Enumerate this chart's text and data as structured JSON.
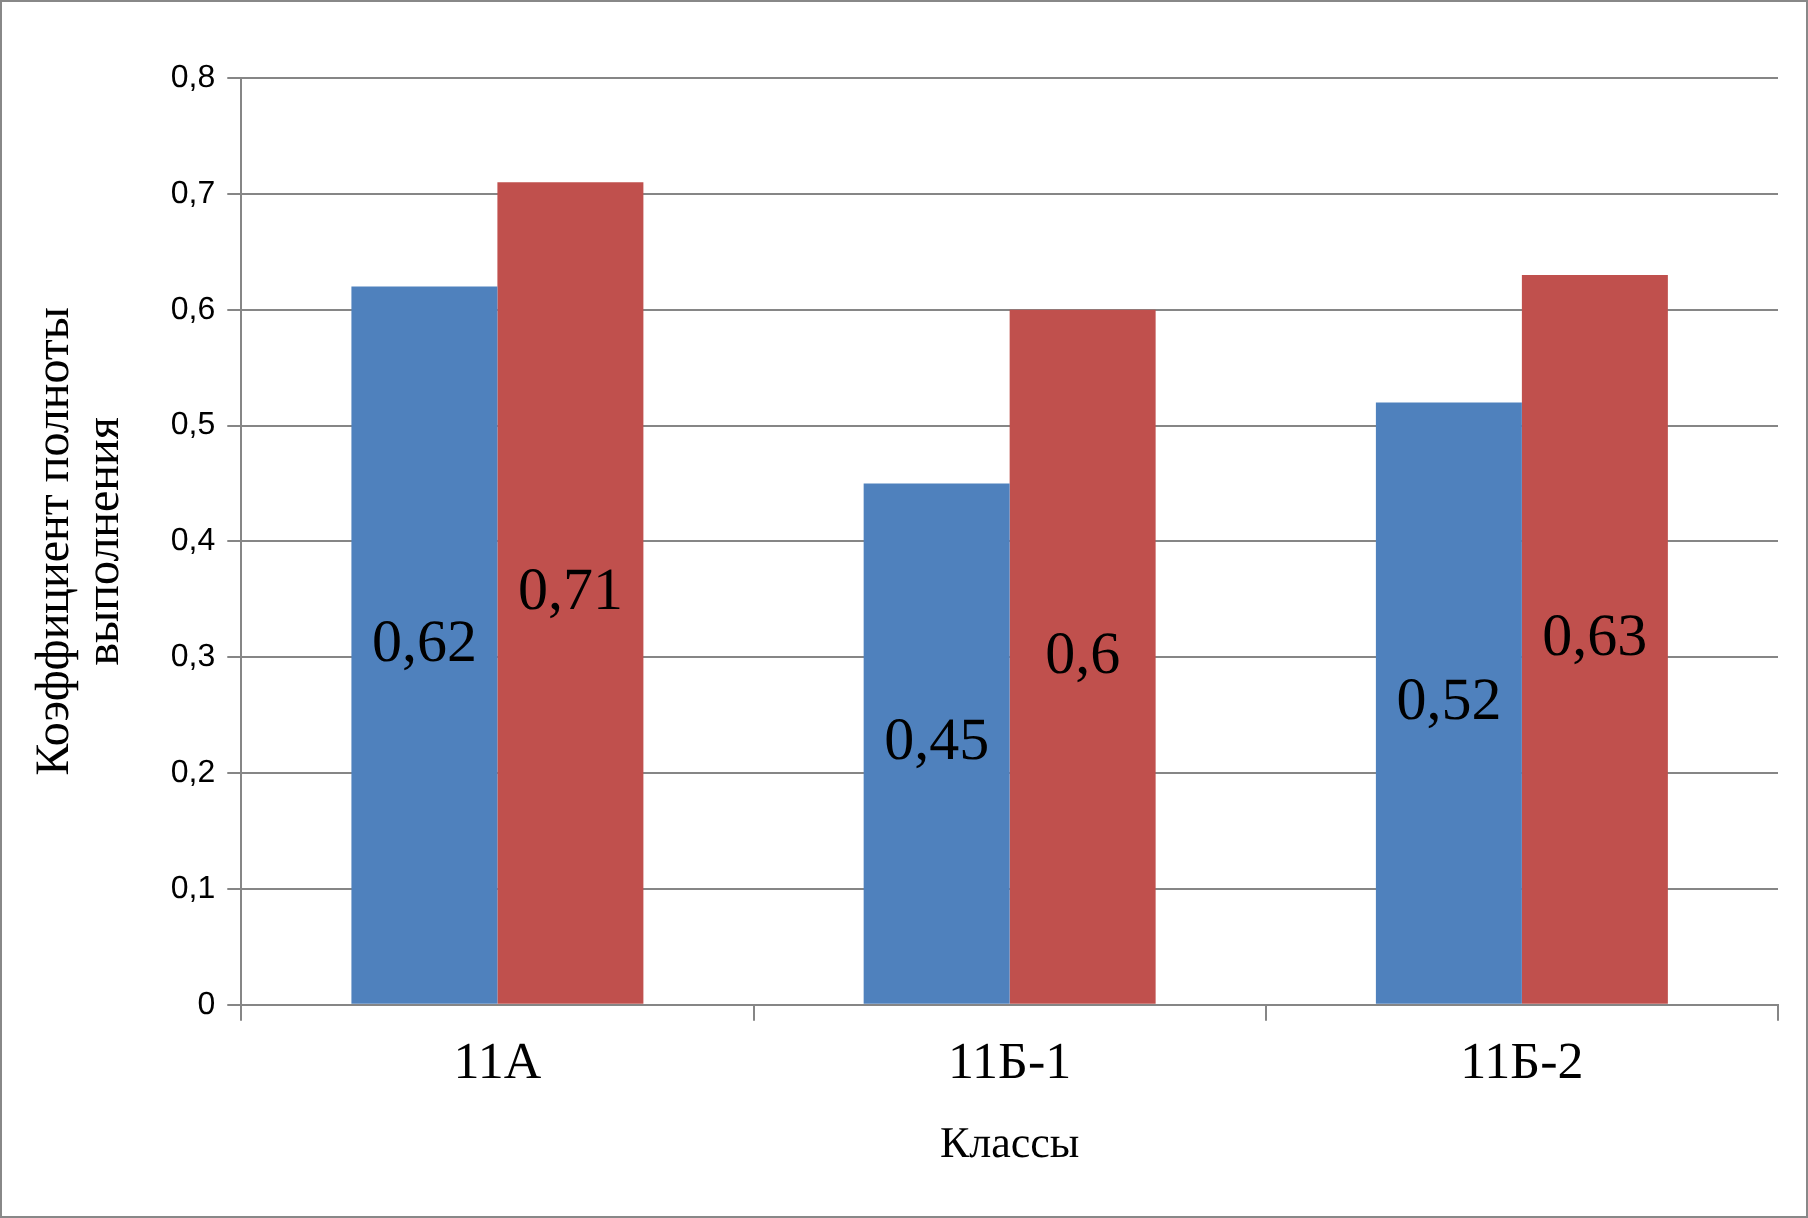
{
  "chart_data": {
    "type": "bar",
    "ylabel": "Коэффициент полноты выполнения",
    "xlabel": "Классы",
    "categories": [
      "11А",
      "11Б-1",
      "11Б-2"
    ],
    "series": [
      {
        "color": "#4f81bd",
        "values": [
          0.62,
          0.45,
          0.52
        ],
        "value_labels": [
          "0,62",
          "0,45",
          "0,52"
        ]
      },
      {
        "color": "#c0504d",
        "values": [
          0.71,
          0.6,
          0.63
        ],
        "value_labels": [
          "0,71",
          "0,6",
          "0,63"
        ]
      }
    ],
    "ylim": [
      0,
      0.8
    ],
    "yticks": [
      {
        "value": 0,
        "label": "0"
      },
      {
        "value": 0.1,
        "label": "0,1"
      },
      {
        "value": 0.2,
        "label": "0,2"
      },
      {
        "value": 0.3,
        "label": "0,3"
      },
      {
        "value": 0.4,
        "label": "0,4"
      },
      {
        "value": 0.5,
        "label": "0,5"
      },
      {
        "value": 0.6,
        "label": "0,6"
      },
      {
        "value": 0.7,
        "label": "0,7"
      },
      {
        "value": 0.8,
        "label": "0,8"
      }
    ],
    "grid": "y",
    "legend": false
  }
}
